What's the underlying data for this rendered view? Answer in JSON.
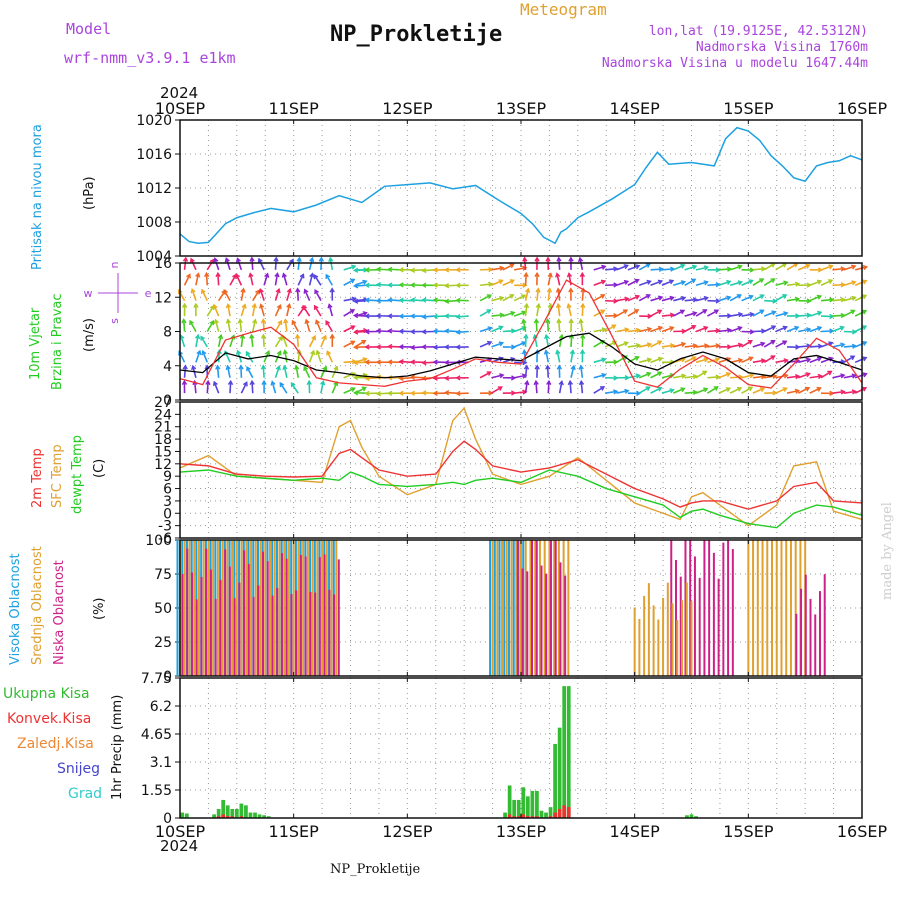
{
  "header": {
    "model_label": "Model",
    "model_name": "wrf-nmm_v3.9.1 e1km",
    "app_title": "Meteogram",
    "station_title": "NP_Prokletije",
    "lonlat": "lon,lat (19.9125E, 42.5312N)",
    "elev": "Nadmorska Visina 1760m",
    "elev_model": "Nadmorska Visina u modelu 1647.44m",
    "year_top": "2024",
    "year_bottom": "2024",
    "footer_station": "NP_Prokletije",
    "watermark": "made by Angel"
  },
  "colors": {
    "pressure": "#1da1e0",
    "wind_speed": "#000000",
    "wind_gust": "#ee3333",
    "t2m": "#ee3333",
    "sfc": "#e0a030",
    "dewpt": "#22cc22",
    "high_cloud": "#1da1e0",
    "mid_cloud": "#e0a030",
    "low_cloud": "#cc2288",
    "total_precip": "#33bb33",
    "conv_precip": "#ee3333",
    "frz_precip": "#ee8833",
    "snow": "#4444cc",
    "graupel": "#33cccc",
    "axis_label_blue": "#1da1e0",
    "axis_label_purple": "#aa44dd"
  },
  "chart_data": [
    {
      "type": "line",
      "title": "Pritisak na nivou mora",
      "ylabel": "Pritisak na nivou mora",
      "unit": "(hPa)",
      "ylim": [
        1004,
        1020
      ],
      "yticks": [
        "1004",
        "1008",
        "1012",
        "1016",
        "1020"
      ],
      "x_ticks": [
        "10SEP",
        "11SEP",
        "12SEP",
        "13SEP",
        "14SEP",
        "15SEP",
        "16SEP"
      ],
      "x_days": [
        0,
        0.08,
        0.16,
        0.25,
        0.4,
        0.5,
        0.65,
        0.8,
        1.0,
        1.2,
        1.4,
        1.6,
        1.8,
        2.0,
        2.2,
        2.4,
        2.6,
        2.8,
        3.0,
        3.1,
        3.2,
        3.3,
        3.35,
        3.4,
        3.5,
        3.6,
        3.8,
        4.0,
        4.1,
        4.2,
        4.3,
        4.5,
        4.7,
        4.8,
        4.9,
        5.0,
        5.1,
        5.2,
        5.3,
        5.4,
        5.5,
        5.6,
        5.7,
        5.8,
        5.9,
        6.0
      ],
      "values": [
        1006.6,
        1005.7,
        1005.5,
        1005.6,
        1007.8,
        1008.5,
        1009.1,
        1009.6,
        1009.2,
        1010.0,
        1011.1,
        1010.3,
        1012.2,
        1012.4,
        1012.6,
        1011.9,
        1012.3,
        1010.6,
        1009.0,
        1007.8,
        1006.2,
        1005.5,
        1006.8,
        1007.2,
        1008.5,
        1009.2,
        1010.7,
        1012.4,
        1014.4,
        1016.2,
        1014.8,
        1015.0,
        1014.6,
        1017.8,
        1019.1,
        1018.7,
        1017.6,
        1015.8,
        1014.6,
        1013.2,
        1012.8,
        1014.6,
        1015.0,
        1015.2,
        1015.8,
        1015.3
      ]
    },
    {
      "type": "line",
      "title": "10m Vjetar Brzina i Pravac",
      "ylabel": "10m Vjetar Brzina i Pravac",
      "unit": "(m/s)",
      "ylim": [
        0,
        16
      ],
      "yticks": [
        "0",
        "4",
        "8",
        "12",
        "16"
      ],
      "direction_legend": {
        "west": "w",
        "east": "e",
        "north": "n",
        "south": "s"
      },
      "x_days": [
        0,
        0.2,
        0.4,
        0.6,
        0.8,
        1.0,
        1.2,
        1.4,
        1.6,
        1.8,
        2.0,
        2.2,
        2.4,
        2.6,
        2.8,
        3.0,
        3.2,
        3.4,
        3.6,
        3.8,
        4.0,
        4.2,
        4.4,
        4.6,
        4.8,
        5.0,
        5.2,
        5.4,
        5.6,
        5.8,
        6.0
      ],
      "series": [
        {
          "name": "speed",
          "values": [
            3.5,
            3.2,
            5.5,
            4.8,
            5.2,
            4.6,
            3.5,
            3.2,
            2.8,
            2.6,
            2.8,
            3.4,
            4.2,
            5.0,
            4.8,
            4.6,
            6.0,
            7.4,
            7.8,
            6.2,
            4.2,
            3.5,
            4.8,
            5.6,
            4.8,
            3.2,
            2.8,
            4.8,
            5.2,
            4.4,
            3.5
          ]
        },
        {
          "name": "gust",
          "values": [
            2.5,
            1.8,
            7.0,
            7.8,
            8.5,
            6.5,
            2.6,
            2.0,
            1.8,
            1.6,
            2.2,
            2.5,
            3.6,
            4.8,
            4.4,
            4.2,
            9.0,
            14.0,
            12.5,
            7.5,
            2.2,
            1.5,
            3.6,
            5.2,
            3.8,
            1.8,
            1.4,
            4.2,
            7.2,
            5.8,
            2.0
          ]
        }
      ]
    },
    {
      "type": "line",
      "ylabel": "2m Temp / SFC Temp / dewpt Temp",
      "unit": "(C)",
      "ylim": [
        -6,
        27
      ],
      "yticks": [
        "-6",
        "-3",
        "0",
        "3",
        "6",
        "9",
        "12",
        "15",
        "18",
        "21",
        "24",
        "27"
      ],
      "x_days": [
        0,
        0.25,
        0.5,
        0.75,
        1.0,
        1.25,
        1.4,
        1.5,
        1.6,
        1.75,
        2.0,
        2.25,
        2.4,
        2.5,
        2.6,
        2.75,
        3.0,
        3.25,
        3.5,
        3.75,
        4.0,
        4.25,
        4.4,
        4.5,
        4.6,
        4.75,
        5.0,
        5.25,
        5.4,
        5.6,
        5.75,
        6.0
      ],
      "series": [
        {
          "name": "2m Temp",
          "values": [
            12,
            11.5,
            9.5,
            9.0,
            8.8,
            9.0,
            14.5,
            15.5,
            13.5,
            10.5,
            9.0,
            9.5,
            15.0,
            17.5,
            15.5,
            11.5,
            10.0,
            11.0,
            13.0,
            9.5,
            6.0,
            3.5,
            1.5,
            2.5,
            3.0,
            3.0,
            1.0,
            3.0,
            6.5,
            7.5,
            3.0,
            2.5
          ]
        },
        {
          "name": "SFC Temp",
          "values": [
            11,
            14.0,
            9.0,
            8.5,
            8.0,
            7.5,
            21.0,
            22.5,
            16.0,
            9.0,
            4.5,
            7.0,
            22.5,
            25.5,
            18.0,
            9.5,
            7.0,
            9.0,
            13.5,
            8.0,
            2.5,
            0.0,
            -1.5,
            4.0,
            5.0,
            2.0,
            -3.0,
            2.0,
            11.5,
            12.5,
            0.5,
            -1.5
          ]
        },
        {
          "name": "dewpt Temp",
          "values": [
            10,
            10.5,
            9.0,
            8.5,
            8.0,
            8.5,
            8.0,
            10.0,
            9.0,
            7.0,
            6.5,
            7.0,
            7.5,
            7.0,
            8.0,
            8.5,
            7.5,
            10.5,
            9.0,
            6.0,
            4.0,
            2.0,
            -1.0,
            0.5,
            1.0,
            -0.5,
            -2.5,
            -3.5,
            0.0,
            2.0,
            1.5,
            -0.5
          ]
        }
      ]
    },
    {
      "type": "bar",
      "ylabel": "Visoka Oblacnost / Srednja Oblacnost / Niska Oblacnost",
      "unit": "(%)",
      "ylim": [
        0,
        100
      ],
      "yticks": [
        "0",
        "25",
        "50",
        "75",
        "100"
      ],
      "interval_hours": 1,
      "blocks": [
        {
          "name": "high",
          "start_day": 0.0,
          "end_day": 1.4,
          "value": 100
        },
        {
          "name": "mid",
          "start_day": 0.0,
          "end_day": 1.4,
          "value": 100
        },
        {
          "name": "low",
          "start_day": 0.0,
          "end_day": 1.4,
          "value": 75
        },
        {
          "name": "high",
          "start_day": 2.75,
          "end_day": 3.05,
          "value": 100
        },
        {
          "name": "mid",
          "start_day": 2.75,
          "end_day": 3.45,
          "value": 100
        },
        {
          "name": "low",
          "start_day": 2.95,
          "end_day": 3.4,
          "value": 95
        },
        {
          "name": "mid",
          "start_day": 5.0,
          "end_day": 5.5,
          "value": 100
        },
        {
          "name": "low",
          "start_day": 4.3,
          "end_day": 4.85,
          "value": 95
        },
        {
          "name": "mid",
          "start_day": 4.0,
          "end_day": 4.5,
          "value": 55
        },
        {
          "name": "low",
          "start_day": 5.4,
          "end_day": 5.65,
          "value": 60
        }
      ]
    },
    {
      "type": "bar",
      "ylabel": "1hr Precip",
      "unit": "(mm)",
      "ylim": [
        0,
        7.75
      ],
      "yticks": [
        "0",
        "1.55",
        "3.1",
        "4.65",
        "6.2",
        "7.75"
      ],
      "legend": [
        "Ukupna Kisa",
        "Konvek.Kisa",
        "Zaledj.Kisa",
        "Snijeg",
        "Grad"
      ],
      "interval_hours": 1,
      "x_days": [
        0.02,
        0.06,
        0.3,
        0.34,
        0.38,
        0.42,
        0.46,
        0.5,
        0.54,
        0.58,
        0.62,
        0.66,
        0.7,
        0.74,
        0.78,
        2.86,
        2.9,
        2.94,
        2.98,
        3.02,
        3.06,
        3.1,
        3.14,
        3.18,
        3.22,
        3.26,
        3.3,
        3.34,
        3.38,
        3.42,
        4.46,
        4.5,
        4.54
      ],
      "series": [
        {
          "name": "Ukupna Kisa",
          "values": [
            0.3,
            0.25,
            0.2,
            0.5,
            1.0,
            0.7,
            0.5,
            0.5,
            0.8,
            0.7,
            0.3,
            0.3,
            0.2,
            0.15,
            0.1,
            0.3,
            1.8,
            1.0,
            1.0,
            1.7,
            1.2,
            1.5,
            1.5,
            0.4,
            0.3,
            0.6,
            4.1,
            5.0,
            7.3,
            7.3,
            0.15,
            0.2,
            0.1
          ]
        },
        {
          "name": "Konvek.Kisa",
          "values": [
            0,
            0,
            0,
            0.1,
            0.2,
            0.1,
            0.1,
            0,
            0.1,
            0,
            0,
            0,
            0,
            0,
            0,
            0,
            0.2,
            0.1,
            0.1,
            0.2,
            0.1,
            0.1,
            0.1,
            0,
            0,
            0.1,
            0.3,
            0.5,
            0.7,
            0.6,
            0,
            0,
            0
          ]
        }
      ]
    }
  ]
}
